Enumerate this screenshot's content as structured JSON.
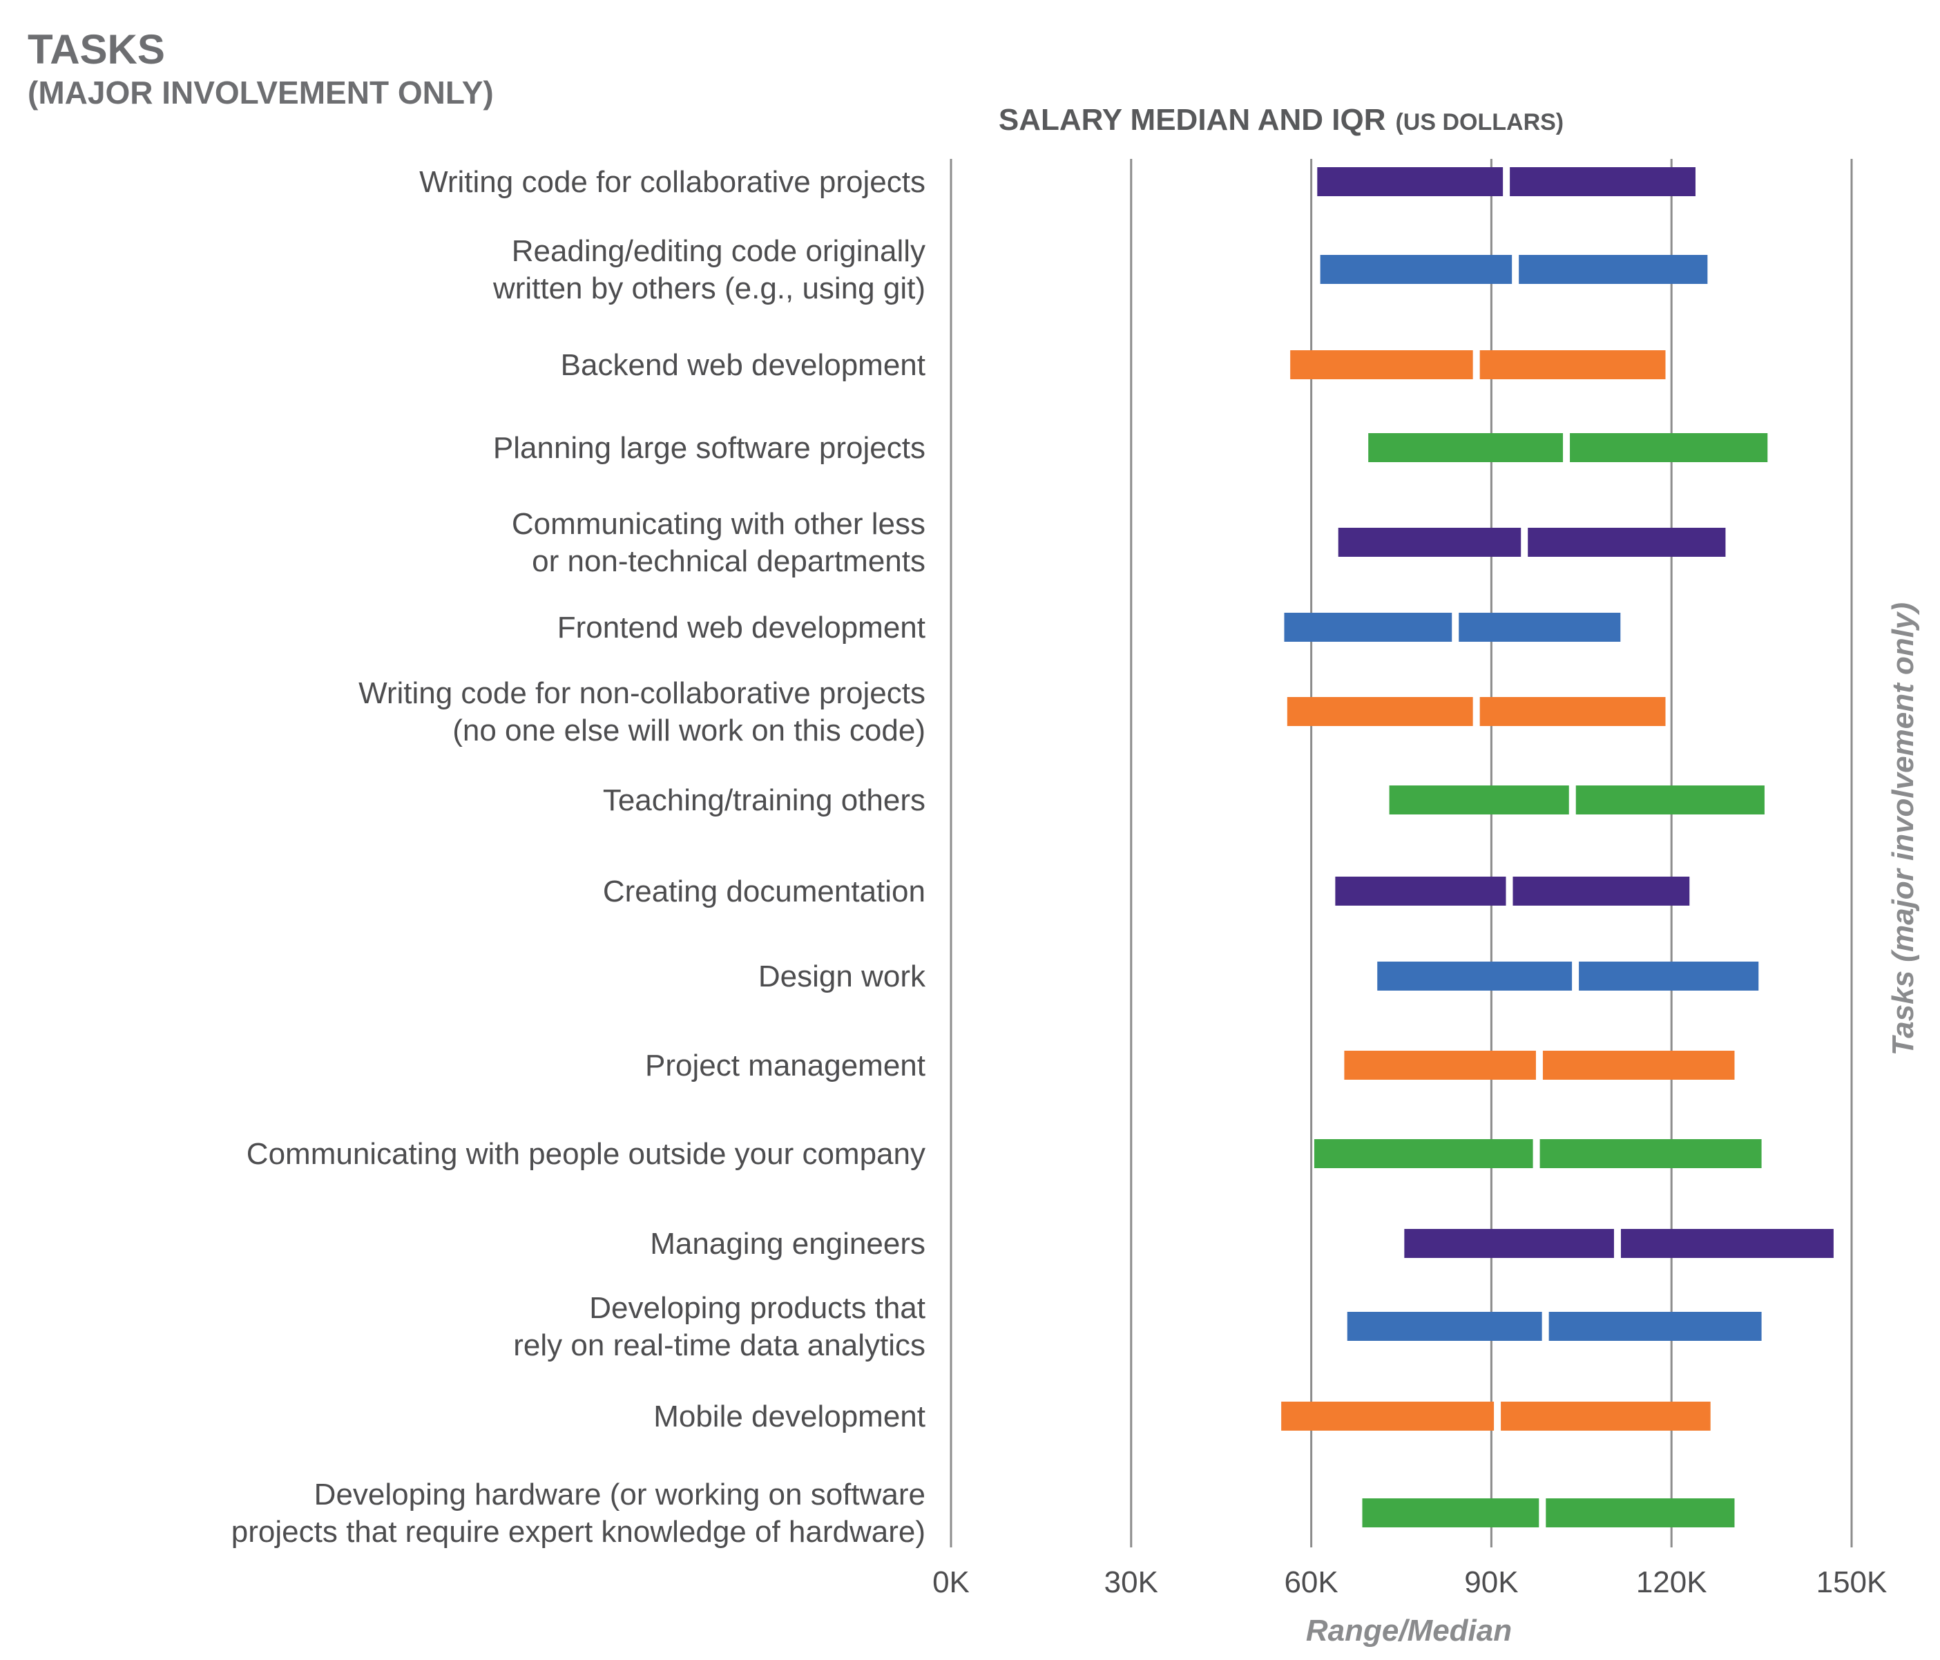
{
  "header": {
    "title": "TASKS",
    "subtitle": "(MAJOR INVOLVEMENT ONLY)"
  },
  "colors": {
    "purple": "#472a85",
    "blue": "#3a70b8",
    "orange": "#f37c2e",
    "green": "#40a945",
    "grid": "#8c8c8c",
    "text": "#4d4d4f"
  },
  "chart_data": {
    "type": "range-bar",
    "title": "SALARY MEDIAN AND IQR",
    "title_unit": "(US DOLLARS)",
    "xlabel": "Range/Median",
    "ylabel": "Tasks (major involvement only)",
    "xlim": [
      0,
      150000
    ],
    "xticks": [
      0,
      30000,
      60000,
      90000,
      120000,
      150000
    ],
    "xtick_labels": [
      "0K",
      "30K",
      "60K",
      "90K",
      "120K",
      "150K"
    ],
    "grid": true,
    "categories": [
      [
        "Writing code for collaborative projects"
      ],
      [
        "Reading/editing code originally",
        "written by others (e.g., using git)"
      ],
      [
        "Backend web development"
      ],
      [
        "Planning large software projects"
      ],
      [
        "Communicating with other less",
        "or non-technical departments"
      ],
      [
        "Frontend web development"
      ],
      [
        "Writing code for non-collaborative projects",
        "(no one else will work on this code)"
      ],
      [
        "Teaching/training others"
      ],
      [
        "Creating documentation"
      ],
      [
        "Design work"
      ],
      [
        "Project management"
      ],
      [
        "Communicating with people outside your company"
      ],
      [
        "Managing engineers"
      ],
      [
        "Developing products that",
        "rely on real-time data analytics"
      ],
      [
        "Mobile development"
      ],
      [
        "Developing hardware (or working on software",
        "projects that require expert knowledge of hardware)"
      ]
    ],
    "q1": [
      61000,
      61500,
      56500,
      69500,
      64500,
      55500,
      56000,
      73000,
      64000,
      71000,
      65500,
      60500,
      75500,
      66000,
      55000,
      68500
    ],
    "median": [
      92500,
      94000,
      87500,
      102500,
      95500,
      84000,
      87500,
      103500,
      93000,
      104000,
      98000,
      97500,
      111000,
      99000,
      91000,
      98500
    ],
    "q3": [
      124000,
      126000,
      119000,
      136000,
      129000,
      111500,
      119000,
      135500,
      123000,
      134500,
      130500,
      135000,
      147000,
      135000,
      126500,
      130500
    ],
    "bar_colors": [
      "purple",
      "blue",
      "orange",
      "green",
      "purple",
      "blue",
      "orange",
      "green",
      "purple",
      "blue",
      "orange",
      "green",
      "purple",
      "blue",
      "orange",
      "green"
    ]
  }
}
